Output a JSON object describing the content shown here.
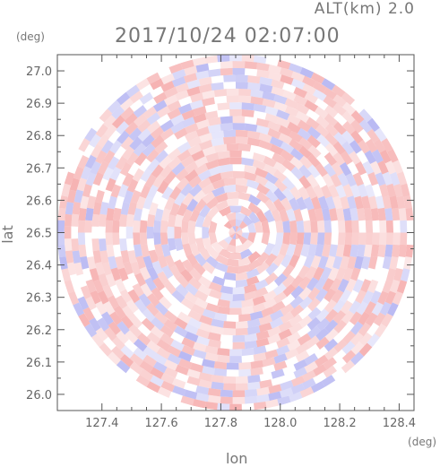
{
  "header": {
    "altitude_label": "ALT(km) 2.0",
    "timestamp": "2017/10/24 02:07:00"
  },
  "axes": {
    "y_unit": "(deg)",
    "x_unit": "(deg)",
    "xlabel": "lon",
    "ylabel": "lat"
  },
  "colors": {
    "positive": "#f4a0a0",
    "negative": "#a8a8f0",
    "frame": "#555555"
  },
  "chart_data": {
    "type": "heatmap",
    "title": "2017/10/24 02:07:00",
    "xlabel": "lon",
    "ylabel": "lat",
    "xlim": [
      127.25,
      128.45
    ],
    "ylim": [
      25.95,
      27.05
    ],
    "x_ticks": [
      "127.4",
      "127.6",
      "127.8",
      "128.0",
      "128.2",
      "128.4"
    ],
    "y_ticks": [
      "26.0",
      "26.1",
      "26.2",
      "26.3",
      "26.4",
      "26.5",
      "26.6",
      "26.7",
      "26.8",
      "26.9",
      "27.0"
    ],
    "center": [
      127.85,
      26.5
    ],
    "radius_deg": 0.6,
    "color_scale": "red-white-blue (diverging)"
  }
}
